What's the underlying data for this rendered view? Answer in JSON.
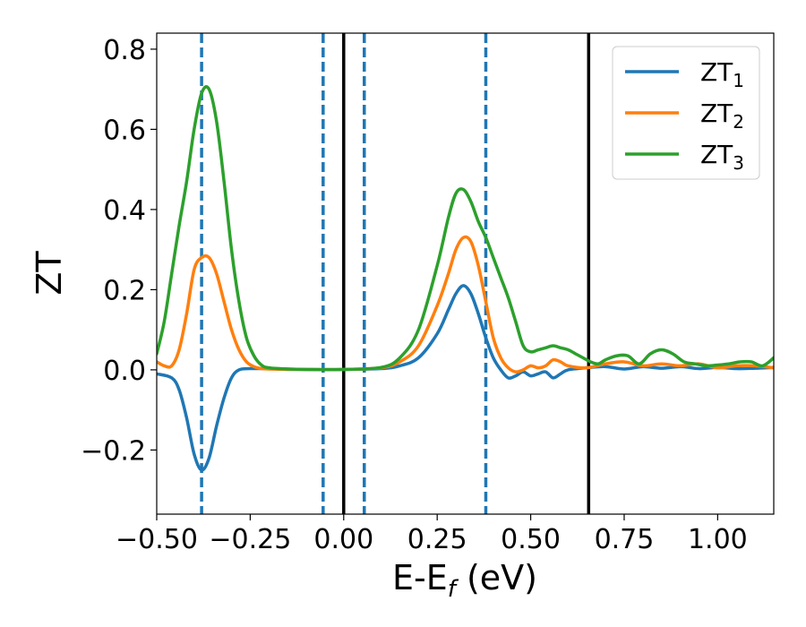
{
  "chart_data": {
    "type": "line",
    "xlabel": "E-E",
    "xlabel_sub": "f",
    "xlabel_unit": " (eV)",
    "ylabel": "ZT",
    "xlim": [
      -0.5,
      1.15
    ],
    "ylim": [
      -0.36,
      0.84
    ],
    "x_ticks": [
      -0.5,
      -0.25,
      0.0,
      0.25,
      0.5,
      0.75,
      1.0
    ],
    "x_tick_labels": [
      "−0.50",
      "−0.25",
      "0.00",
      "0.25",
      "0.50",
      "0.75",
      "1.00"
    ],
    "y_ticks": [
      -0.2,
      0.0,
      0.2,
      0.4,
      0.6,
      0.8
    ],
    "y_tick_labels": [
      "−0.2",
      "0.0",
      "0.2",
      "0.4",
      "0.6",
      "0.8"
    ],
    "grid": false,
    "legend_position": "top-right",
    "series": [
      {
        "name": "ZT",
        "subscript": "1",
        "color": "#1f77b4",
        "x": [
          -0.5,
          -0.46,
          -0.44,
          -0.42,
          -0.4,
          -0.38,
          -0.36,
          -0.34,
          -0.32,
          -0.3,
          -0.28,
          -0.25,
          -0.2,
          -0.1,
          0.0,
          0.1,
          0.15,
          0.2,
          0.25,
          0.28,
          0.3,
          0.32,
          0.34,
          0.36,
          0.38,
          0.4,
          0.42,
          0.44,
          0.46,
          0.48,
          0.5,
          0.52,
          0.54,
          0.56,
          0.58,
          0.6,
          0.65,
          0.7,
          0.75,
          0.8,
          0.85,
          0.9,
          0.95,
          1.0,
          1.05,
          1.1,
          1.15
        ],
        "y": [
          -0.01,
          -0.02,
          -0.05,
          -0.12,
          -0.21,
          -0.25,
          -0.22,
          -0.14,
          -0.07,
          -0.02,
          0.0,
          0.003,
          0.003,
          0.001,
          0.001,
          0.003,
          0.01,
          0.03,
          0.09,
          0.15,
          0.19,
          0.21,
          0.19,
          0.14,
          0.08,
          0.03,
          0.0,
          -0.02,
          -0.015,
          -0.005,
          -0.015,
          -0.01,
          -0.005,
          -0.02,
          -0.01,
          0.0,
          0.005,
          0.008,
          0.002,
          0.008,
          0.004,
          0.008,
          0.003,
          0.006,
          0.003,
          0.004,
          0.006
        ]
      },
      {
        "name": "ZT",
        "subscript": "2",
        "color": "#ff7f0e",
        "x": [
          -0.5,
          -0.48,
          -0.46,
          -0.44,
          -0.42,
          -0.4,
          -0.38,
          -0.36,
          -0.34,
          -0.32,
          -0.3,
          -0.28,
          -0.26,
          -0.24,
          -0.22,
          -0.2,
          -0.15,
          -0.1,
          0.0,
          0.1,
          0.15,
          0.2,
          0.25,
          0.28,
          0.3,
          0.32,
          0.34,
          0.36,
          0.38,
          0.4,
          0.42,
          0.44,
          0.46,
          0.48,
          0.5,
          0.52,
          0.54,
          0.56,
          0.58,
          0.6,
          0.65,
          0.7,
          0.75,
          0.8,
          0.85,
          0.9,
          0.95,
          1.0,
          1.05,
          1.1,
          1.15
        ],
        "y": [
          0.02,
          0.01,
          0.01,
          0.05,
          0.14,
          0.25,
          0.28,
          0.28,
          0.24,
          0.17,
          0.1,
          0.05,
          0.02,
          0.008,
          0.003,
          0.002,
          0.001,
          0.001,
          0.001,
          0.005,
          0.02,
          0.06,
          0.16,
          0.24,
          0.3,
          0.33,
          0.32,
          0.26,
          0.17,
          0.08,
          0.03,
          0.005,
          -0.005,
          0.0,
          0.01,
          0.005,
          0.01,
          0.025,
          0.02,
          0.01,
          0.005,
          0.015,
          0.02,
          0.01,
          0.015,
          0.01,
          0.015,
          0.005,
          0.01,
          0.01,
          0.005
        ]
      },
      {
        "name": "ZT",
        "subscript": "3",
        "color": "#2ca02c",
        "x": [
          -0.5,
          -0.48,
          -0.46,
          -0.44,
          -0.42,
          -0.4,
          -0.38,
          -0.36,
          -0.34,
          -0.32,
          -0.3,
          -0.28,
          -0.26,
          -0.24,
          -0.22,
          -0.2,
          -0.15,
          -0.1,
          0.0,
          0.1,
          0.15,
          0.2,
          0.25,
          0.28,
          0.3,
          0.32,
          0.34,
          0.36,
          0.38,
          0.4,
          0.42,
          0.44,
          0.46,
          0.48,
          0.5,
          0.52,
          0.54,
          0.56,
          0.58,
          0.6,
          0.62,
          0.64,
          0.66,
          0.68,
          0.7,
          0.73,
          0.76,
          0.79,
          0.82,
          0.85,
          0.88,
          0.91,
          0.94,
          0.97,
          1.0,
          1.03,
          1.06,
          1.09,
          1.12,
          1.15
        ],
        "y": [
          0.04,
          0.12,
          0.24,
          0.36,
          0.47,
          0.6,
          0.69,
          0.7,
          0.62,
          0.47,
          0.3,
          0.17,
          0.08,
          0.035,
          0.012,
          0.005,
          0.002,
          0.001,
          0.001,
          0.006,
          0.03,
          0.1,
          0.26,
          0.38,
          0.44,
          0.45,
          0.42,
          0.37,
          0.33,
          0.28,
          0.23,
          0.18,
          0.12,
          0.06,
          0.045,
          0.05,
          0.055,
          0.06,
          0.055,
          0.05,
          0.04,
          0.03,
          0.02,
          0.015,
          0.025,
          0.035,
          0.035,
          0.015,
          0.04,
          0.05,
          0.04,
          0.02,
          0.015,
          0.01,
          0.012,
          0.015,
          0.02,
          0.02,
          0.01,
          0.03
        ]
      }
    ],
    "vertical_lines": [
      {
        "x": -0.38,
        "style": "dashed",
        "color": "#1f77b4"
      },
      {
        "x": -0.055,
        "style": "dashed",
        "color": "#1f77b4"
      },
      {
        "x": 0.0,
        "style": "solid",
        "color": "#000000"
      },
      {
        "x": 0.055,
        "style": "dashed",
        "color": "#1f77b4"
      },
      {
        "x": 0.38,
        "style": "dashed",
        "color": "#1f77b4"
      },
      {
        "x": 0.655,
        "style": "solid",
        "color": "#000000"
      }
    ]
  }
}
